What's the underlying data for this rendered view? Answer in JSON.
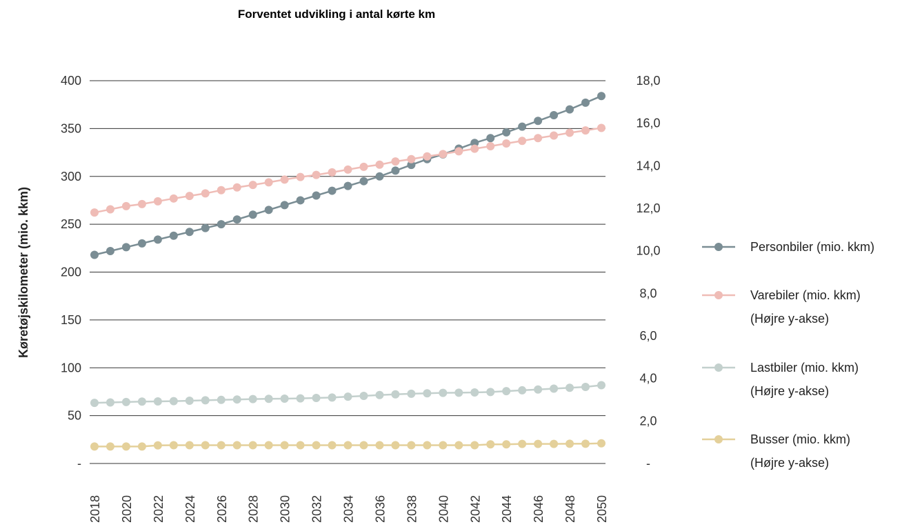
{
  "chart_data": {
    "type": "line",
    "title": "Forventet udvikling i antal kørte km",
    "ylabel": "Køretøjskilometer (mio. kkm)",
    "x": [
      2018,
      2019,
      2020,
      2021,
      2022,
      2023,
      2024,
      2025,
      2026,
      2027,
      2028,
      2029,
      2030,
      2031,
      2032,
      2033,
      2034,
      2035,
      2036,
      2037,
      2038,
      2039,
      2040,
      2041,
      2042,
      2043,
      2044,
      2045,
      2046,
      2047,
      2048,
      2049,
      2050
    ],
    "x_tick_labels": [
      "2018",
      "2020",
      "2022",
      "2024",
      "2026",
      "2028",
      "2030",
      "2032",
      "2034",
      "2036",
      "2038",
      "2040",
      "2042",
      "2044",
      "2046",
      "2048",
      "2050"
    ],
    "y_left": {
      "range": [
        0,
        400
      ],
      "tick_labels": [
        "-",
        "50",
        "100",
        "150",
        "200",
        "250",
        "300",
        "350",
        "400"
      ]
    },
    "y_right": {
      "range": [
        0,
        18
      ],
      "tick_labels": [
        "-",
        "2,0",
        "4,0",
        "6,0",
        "8,0",
        "10,0",
        "12,0",
        "14,0",
        "16,0",
        "18,0"
      ]
    },
    "grid": "horizontal",
    "legend_position": "right",
    "series": [
      {
        "name": "Personbiler (mio. kkm)",
        "axis": "left",
        "color": "#7a8d94",
        "values": [
          218,
          222,
          226,
          230,
          234,
          238,
          242,
          246,
          250,
          255,
          260,
          265,
          270,
          275,
          280,
          285,
          290,
          295,
          300,
          306,
          312,
          318,
          323,
          329,
          335,
          340,
          346,
          352,
          358,
          364,
          370,
          377,
          384
        ]
      },
      {
        "name": "Varebiler (mio. kkm)",
        "name_line2": "(Højre y-akse)",
        "axis": "right",
        "color": "#efbcb6",
        "values": [
          11.8,
          11.95,
          12.1,
          12.2,
          12.33,
          12.46,
          12.58,
          12.7,
          12.85,
          12.98,
          13.1,
          13.22,
          13.35,
          13.47,
          13.57,
          13.69,
          13.82,
          13.95,
          14.05,
          14.2,
          14.31,
          14.44,
          14.55,
          14.68,
          14.8,
          14.92,
          15.05,
          15.17,
          15.3,
          15.42,
          15.55,
          15.66,
          15.78
        ]
      },
      {
        "name": "Lastbiler (mio. kkm)",
        "name_line2": "(Højre y-akse)",
        "axis": "right",
        "color": "#c3d0cd",
        "values": [
          2.85,
          2.87,
          2.89,
          2.91,
          2.92,
          2.93,
          2.95,
          2.97,
          2.99,
          3.01,
          3.03,
          3.04,
          3.05,
          3.06,
          3.08,
          3.1,
          3.14,
          3.18,
          3.22,
          3.25,
          3.28,
          3.3,
          3.32,
          3.33,
          3.34,
          3.36,
          3.4,
          3.44,
          3.48,
          3.52,
          3.56,
          3.6,
          3.68
        ]
      },
      {
        "name": "Busser (mio. kkm)",
        "name_line2": "(Højre y-akse)",
        "axis": "right",
        "color": "#e4d09a",
        "values": [
          0.8,
          0.8,
          0.8,
          0.8,
          0.85,
          0.86,
          0.86,
          0.86,
          0.86,
          0.86,
          0.86,
          0.86,
          0.86,
          0.86,
          0.86,
          0.86,
          0.86,
          0.86,
          0.86,
          0.86,
          0.86,
          0.86,
          0.86,
          0.86,
          0.86,
          0.9,
          0.9,
          0.92,
          0.92,
          0.92,
          0.93,
          0.93,
          0.95
        ]
      }
    ]
  }
}
